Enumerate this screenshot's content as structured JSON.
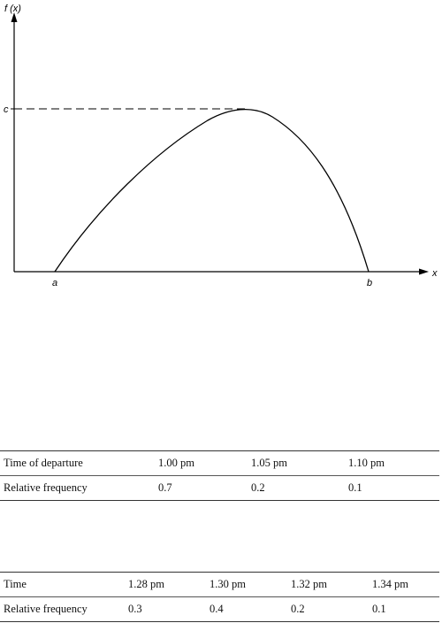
{
  "graph": {
    "y_axis_label": "f (x)",
    "x_axis_label": "x",
    "peak_label": "c",
    "left_label": "a",
    "right_label": "b"
  },
  "table1": {
    "header_label": "Time of departure",
    "header_values": [
      "1.00 pm",
      "1.05 pm",
      "1.10 pm"
    ],
    "row_label": "Relative frequency",
    "row_values": [
      "0.7",
      "0.2",
      "0.1"
    ]
  },
  "table2": {
    "header_label": "Time",
    "header_values": [
      "1.28 pm",
      "1.30 pm",
      "1.32 pm",
      "1.34 pm"
    ],
    "row_label": "Relative frequency",
    "row_values": [
      "0.3",
      "0.4",
      "0.2",
      "0.1"
    ]
  }
}
